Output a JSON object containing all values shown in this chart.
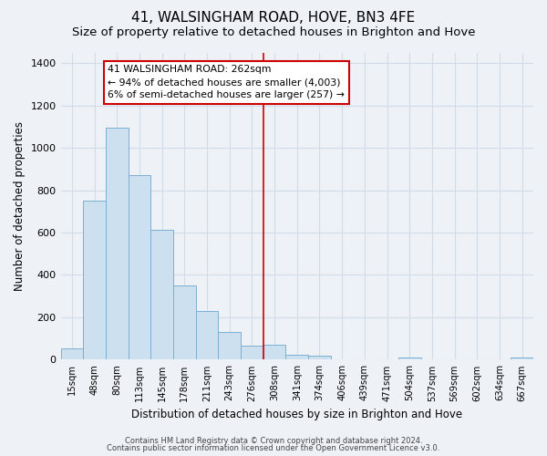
{
  "title": "41, WALSINGHAM ROAD, HOVE, BN3 4FE",
  "subtitle": "Size of property relative to detached houses in Brighton and Hove",
  "xlabel": "Distribution of detached houses by size in Brighton and Hove",
  "ylabel": "Number of detached properties",
  "bar_labels": [
    "15sqm",
    "48sqm",
    "80sqm",
    "113sqm",
    "145sqm",
    "178sqm",
    "211sqm",
    "243sqm",
    "276sqm",
    "308sqm",
    "341sqm",
    "374sqm",
    "406sqm",
    "439sqm",
    "471sqm",
    "504sqm",
    "537sqm",
    "569sqm",
    "602sqm",
    "634sqm",
    "667sqm"
  ],
  "bar_heights": [
    55,
    750,
    1095,
    870,
    615,
    350,
    228,
    133,
    65,
    70,
    25,
    20,
    0,
    0,
    0,
    10,
    0,
    0,
    0,
    0,
    10
  ],
  "bar_color": "#cce0f0",
  "bar_edge_color": "#7ab0d4",
  "reference_line_x": 8.5,
  "reference_line_color": "#cc0000",
  "annotation_title": "41 WALSINGHAM ROAD: 262sqm",
  "annotation_line1": "← 94% of detached houses are smaller (4,003)",
  "annotation_line2": "6% of semi-detached houses are larger (257) →",
  "annotation_box_color": "#ffffff",
  "annotation_box_edge": "#cc0000",
  "ylim": [
    0,
    1450
  ],
  "footnote1": "Contains HM Land Registry data © Crown copyright and database right 2024.",
  "footnote2": "Contains public sector information licensed under the Open Government Licence v3.0.",
  "background_color": "#eef2f7",
  "grid_color": "#d0dce8",
  "title_fontsize": 11,
  "subtitle_fontsize": 9.5
}
